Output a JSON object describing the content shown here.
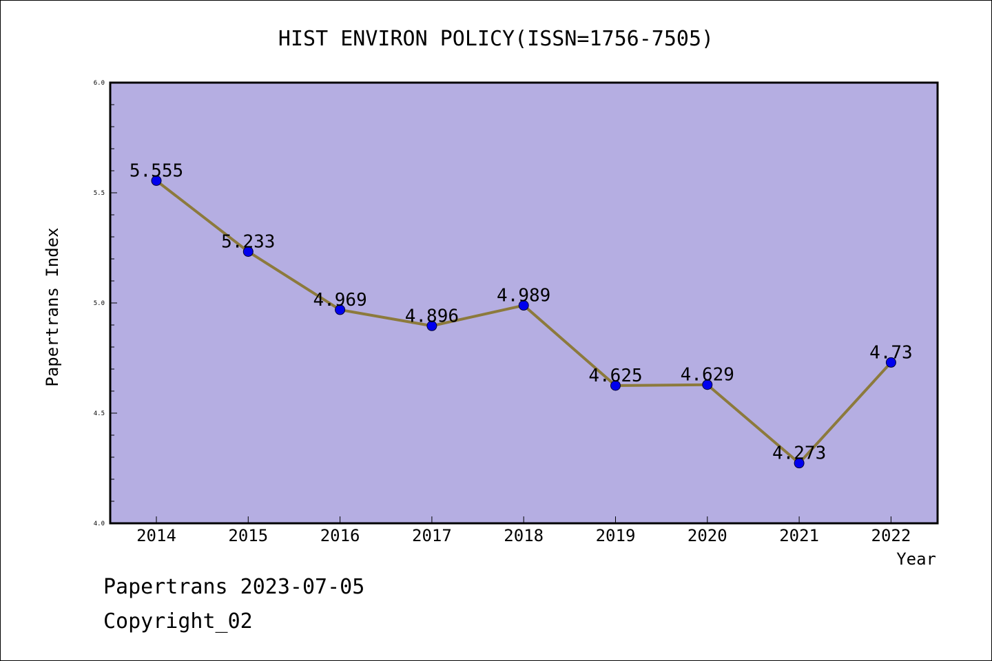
{
  "footer": {
    "line1": "Papertrans 2023-07-05",
    "line2": "Copyright_02"
  },
  "colors": {
    "plot_background": "#b5aee2",
    "line": "#8c7a3c",
    "marker": "#0000ee"
  },
  "chart_data": {
    "type": "line",
    "title": "HIST ENVIRON POLICY(ISSN=1756-7505)",
    "xlabel": "Year",
    "ylabel": "Papertrans Index",
    "categories": [
      "2014",
      "2015",
      "2016",
      "2017",
      "2018",
      "2019",
      "2020",
      "2021",
      "2022"
    ],
    "series": [
      {
        "values": [
          5.555,
          5.233,
          4.969,
          4.896,
          4.989,
          4.625,
          4.629,
          4.273,
          4.73
        ],
        "labels": [
          "5.555",
          "5.233",
          "4.969",
          "4.896",
          "4.989",
          "4.625",
          "4.629",
          "4.273",
          "4.73"
        ]
      }
    ],
    "ylim": [
      4.0,
      6.0
    ],
    "yticks": [
      "4.0",
      "4.5",
      "5.0",
      "5.5",
      "6.0"
    ],
    "grid": false
  }
}
